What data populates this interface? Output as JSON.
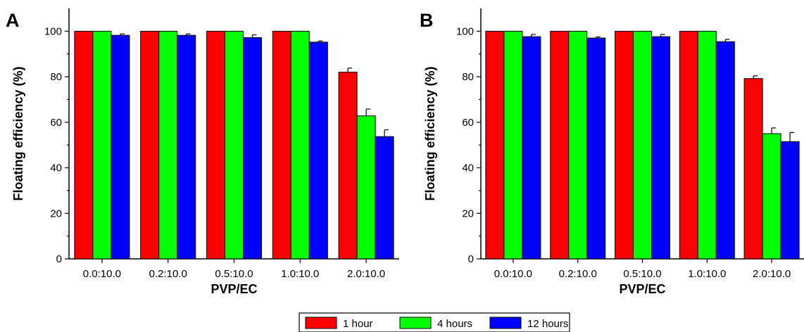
{
  "chart_data": [
    {
      "type": "bar",
      "panel_label": "A",
      "xlabel": "PVP/EC",
      "ylabel": "Floating efficiency (%)",
      "ylim": [
        0,
        110
      ],
      "yticks": [
        0,
        20,
        40,
        60,
        80,
        100
      ],
      "categories": [
        "0.0:10.0",
        "0.2:10.0",
        "0.5:10.0",
        "1.0:10.0",
        "2.0:10.0"
      ],
      "series": [
        {
          "name": "1 hour",
          "color": "#ff0000",
          "values": [
            100,
            100,
            100,
            100,
            82
          ],
          "errors": [
            0,
            0,
            0,
            0,
            1.8
          ]
        },
        {
          "name": "4 hours",
          "color": "#00ff00",
          "values": [
            100,
            100,
            100,
            100,
            62.8
          ],
          "errors": [
            0,
            0,
            0,
            0,
            3
          ]
        },
        {
          "name": "12 hours",
          "color": "#0000ff",
          "values": [
            98.2,
            98.2,
            97.2,
            95.2,
            53.7
          ],
          "errors": [
            0.6,
            0.6,
            1.2,
            0.5,
            3
          ]
        }
      ]
    },
    {
      "type": "bar",
      "panel_label": "B",
      "xlabel": "PVP/EC",
      "ylabel": "Floating efficiency (%)",
      "ylim": [
        0,
        110
      ],
      "yticks": [
        0,
        20,
        40,
        60,
        80,
        100
      ],
      "categories": [
        "0.0:10.0",
        "0.2:10.0",
        "0.5:10.0",
        "1.0:10.0",
        "2.0:10.0"
      ],
      "series": [
        {
          "name": "1 hour",
          "color": "#ff0000",
          "values": [
            100,
            100,
            100,
            100,
            79.2
          ],
          "errors": [
            0,
            0,
            0,
            0,
            1.2
          ]
        },
        {
          "name": "4 hours",
          "color": "#00ff00",
          "values": [
            100,
            100,
            100,
            100,
            55
          ],
          "errors": [
            0,
            0,
            0,
            0,
            2.5
          ]
        },
        {
          "name": "12 hours",
          "color": "#0000ff",
          "values": [
            97.6,
            97,
            97.6,
            95.4,
            51.5
          ],
          "errors": [
            1,
            0.5,
            1,
            1,
            4
          ]
        }
      ]
    }
  ],
  "legend": {
    "items": [
      {
        "label": "1 hour",
        "color": "#ff0000"
      },
      {
        "label": "4 hours",
        "color": "#00ff00"
      },
      {
        "label": "12 hours",
        "color": "#0000ff"
      }
    ]
  }
}
